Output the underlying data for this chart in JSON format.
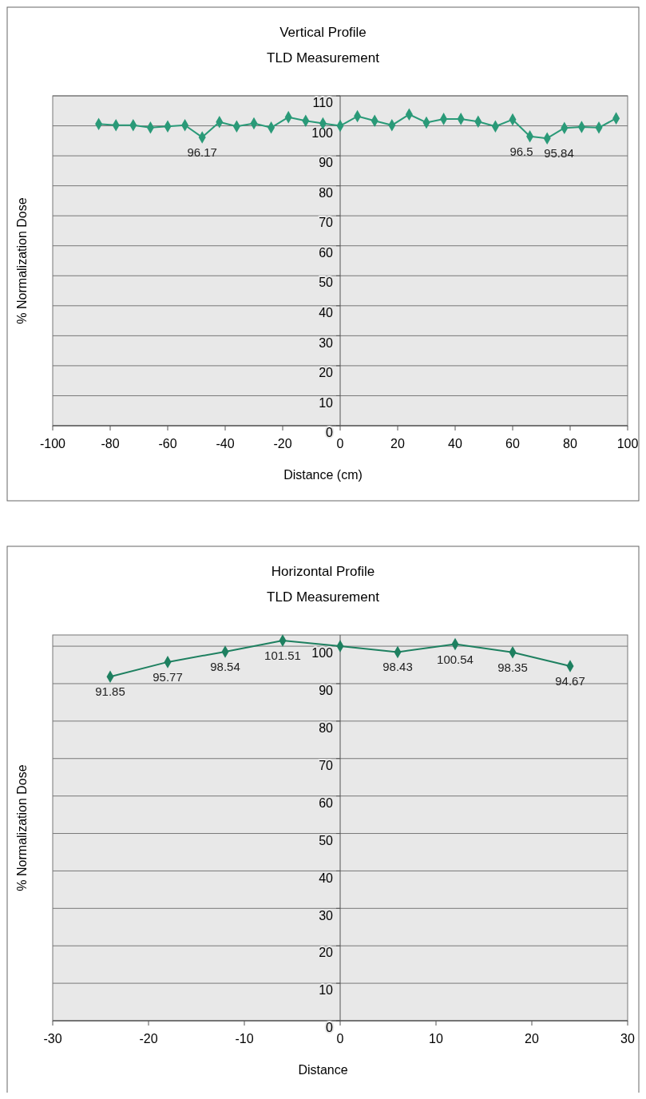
{
  "chart_data": [
    {
      "type": "line",
      "title": "Vertical Profile",
      "subtitle": "TLD Measurement",
      "xlabel": "Distance (cm)",
      "ylabel": "% Normalization Dose",
      "x": [
        -84,
        -78,
        -72,
        -66,
        -60,
        -54,
        -48,
        -42,
        -36,
        -30,
        -24,
        -18,
        -12,
        -6,
        0,
        6,
        12,
        18,
        24,
        30,
        36,
        42,
        48,
        54,
        60,
        66,
        72,
        78,
        84,
        90,
        96
      ],
      "series": [
        {
          "color": "#2a9a78",
          "values": [
            100.6,
            100.2,
            100.2,
            99.4,
            99.8,
            100.2,
            96.17,
            101.3,
            99.8,
            100.8,
            99.4,
            102.9,
            101.7,
            100.8,
            100.0,
            103.2,
            101.7,
            100.2,
            103.8,
            101.1,
            102.3,
            102.3,
            101.4,
            99.8,
            102.1,
            96.5,
            95.84,
            99.3,
            99.6,
            99.4,
            102.5
          ],
          "value_labels": [
            null,
            null,
            null,
            null,
            null,
            null,
            "96.17",
            null,
            null,
            null,
            null,
            null,
            null,
            null,
            null,
            null,
            null,
            null,
            null,
            null,
            null,
            null,
            null,
            null,
            null,
            "96.5",
            "95.84",
            null,
            null,
            null,
            null
          ]
        }
      ],
      "xlim": [
        -100,
        100
      ],
      "xticks": [
        -100,
        -80,
        -60,
        -40,
        -20,
        0,
        20,
        40,
        60,
        80,
        100
      ],
      "ylim": [
        0,
        110
      ],
      "yticks": [
        0,
        10,
        20,
        30,
        40,
        50,
        60,
        70,
        80,
        90,
        100,
        110
      ],
      "grid": "y",
      "marker": "diamond"
    },
    {
      "type": "line",
      "title": "Horizontal Profile",
      "subtitle": "TLD Measurement",
      "xlabel": "Distance",
      "ylabel": "% Normalization Dose",
      "x": [
        -24,
        -18,
        -12,
        -6,
        0,
        6,
        12,
        18,
        24
      ],
      "series": [
        {
          "color": "#1e8060",
          "values": [
            91.85,
            95.77,
            98.54,
            101.51,
            100.0,
            98.43,
            100.54,
            98.35,
            94.67
          ],
          "value_labels": [
            "91.85",
            "95.77",
            "98.54",
            "101.51",
            null,
            "98.43",
            "100.54",
            "98.35",
            "94.67"
          ]
        }
      ],
      "xlim": [
        -30,
        30
      ],
      "xticks": [
        -30,
        -20,
        -10,
        0,
        10,
        20,
        30
      ],
      "ylim": [
        0,
        103
      ],
      "yticks": [
        0,
        10,
        20,
        30,
        40,
        50,
        60,
        70,
        80,
        90,
        100
      ],
      "grid": "y",
      "marker": "diamond"
    }
  ]
}
